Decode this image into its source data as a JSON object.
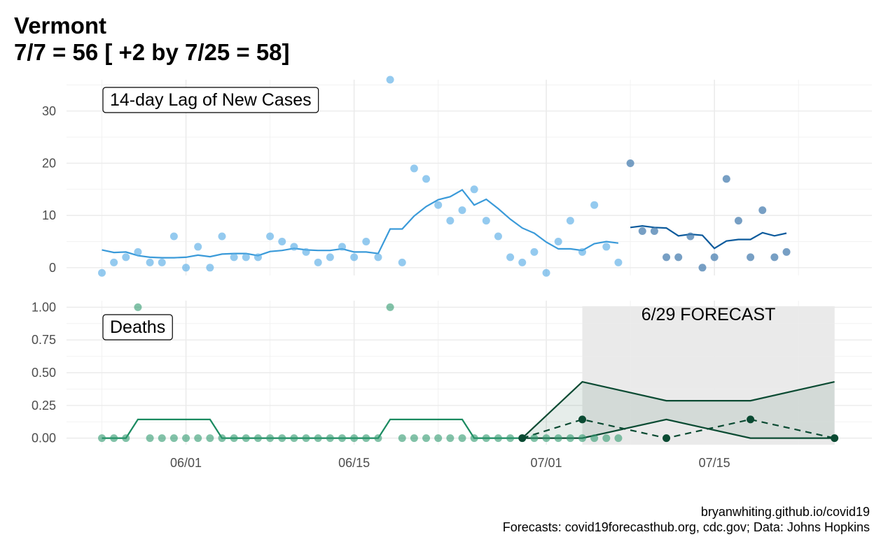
{
  "title": {
    "line1": "Vermont",
    "line2": "7/7 = 56 [ +2 by 7/25 = 58]"
  },
  "caption": {
    "line1": "bryanwhiting.github.io/covid19",
    "line2": "Forecasts: covid19forecasthub.org, cdc.gov; Data: Johns Hopkins"
  },
  "colors": {
    "cases_point": "#5aaee6",
    "cases_line": "#3a9ad9",
    "cases_forecast_point": "#4a7fb0",
    "cases_forecast_line": "#0b5a9c",
    "deaths_point": "#2e9a6e",
    "deaths_line": "#1a8a60",
    "forecast_line": "#0a4a32",
    "forecast_band": "#e9e9e9",
    "grid": "#ebebeb"
  },
  "chart_data": [
    {
      "type": "scatter",
      "label": "14-day Lag of New Cases",
      "x_axis": {
        "type": "date",
        "ticks": [
          "06/01",
          "06/15",
          "07/01",
          "07/15"
        ],
        "range": [
          "2020-05-25",
          "2020-07-28"
        ]
      },
      "ylim": [
        -1.5,
        36
      ],
      "y_ticks": [
        0,
        10,
        20,
        30
      ],
      "grid": true,
      "observed": {
        "points": [
          [
            "2020-05-25",
            -1
          ],
          [
            "2020-05-26",
            1
          ],
          [
            "2020-05-27",
            2
          ],
          [
            "2020-05-28",
            3
          ],
          [
            "2020-05-29",
            1
          ],
          [
            "2020-05-30",
            1
          ],
          [
            "2020-05-31",
            6
          ],
          [
            "2020-06-01",
            0
          ],
          [
            "2020-06-02",
            4
          ],
          [
            "2020-06-03",
            0
          ],
          [
            "2020-06-04",
            6
          ],
          [
            "2020-06-05",
            2
          ],
          [
            "2020-06-06",
            2
          ],
          [
            "2020-06-07",
            2
          ],
          [
            "2020-06-08",
            6
          ],
          [
            "2020-06-09",
            5
          ],
          [
            "2020-06-10",
            4
          ],
          [
            "2020-06-11",
            3
          ],
          [
            "2020-06-12",
            1
          ],
          [
            "2020-06-13",
            2
          ],
          [
            "2020-06-14",
            4
          ],
          [
            "2020-06-15",
            2
          ],
          [
            "2020-06-16",
            5
          ],
          [
            "2020-06-17",
            2
          ],
          [
            "2020-06-18",
            36
          ],
          [
            "2020-06-19",
            1
          ],
          [
            "2020-06-20",
            19
          ],
          [
            "2020-06-21",
            17
          ],
          [
            "2020-06-22",
            12
          ],
          [
            "2020-06-23",
            9
          ],
          [
            "2020-06-24",
            11
          ],
          [
            "2020-06-25",
            15
          ],
          [
            "2020-06-26",
            9
          ],
          [
            "2020-06-27",
            6
          ],
          [
            "2020-06-28",
            2
          ],
          [
            "2020-06-29",
            1
          ],
          [
            "2020-06-30",
            3
          ],
          [
            "2020-07-01",
            -1
          ],
          [
            "2020-07-02",
            5
          ],
          [
            "2020-07-03",
            9
          ],
          [
            "2020-07-04",
            3
          ],
          [
            "2020-07-05",
            12
          ],
          [
            "2020-07-06",
            4
          ],
          [
            "2020-07-07",
            1
          ]
        ],
        "rolling_mean": [
          [
            "2020-05-25",
            3.4
          ],
          [
            "2020-05-26",
            2.9
          ],
          [
            "2020-05-27",
            3.0
          ],
          [
            "2020-05-28",
            2.3
          ],
          [
            "2020-05-29",
            2.0
          ],
          [
            "2020-05-30",
            1.9
          ],
          [
            "2020-05-31",
            1.9
          ],
          [
            "2020-06-01",
            2.0
          ],
          [
            "2020-06-02",
            2.4
          ],
          [
            "2020-06-03",
            2.1
          ],
          [
            "2020-06-04",
            2.6
          ],
          [
            "2020-06-05",
            2.7
          ],
          [
            "2020-06-06",
            2.7
          ],
          [
            "2020-06-07",
            2.3
          ],
          [
            "2020-06-08",
            3.1
          ],
          [
            "2020-06-09",
            3.3
          ],
          [
            "2020-06-10",
            3.7
          ],
          [
            "2020-06-11",
            3.4
          ],
          [
            "2020-06-12",
            3.3
          ],
          [
            "2020-06-13",
            3.3
          ],
          [
            "2020-06-14",
            3.6
          ],
          [
            "2020-06-15",
            3.0
          ],
          [
            "2020-06-16",
            3.0
          ],
          [
            "2020-06-17",
            2.7
          ],
          [
            "2020-06-18",
            7.4
          ],
          [
            "2020-06-19",
            7.4
          ],
          [
            "2020-06-20",
            9.9
          ],
          [
            "2020-06-21",
            11.7
          ],
          [
            "2020-06-22",
            13.0
          ],
          [
            "2020-06-23",
            13.6
          ],
          [
            "2020-06-24",
            14.9
          ],
          [
            "2020-06-25",
            12.0
          ],
          [
            "2020-06-26",
            13.1
          ],
          [
            "2020-06-27",
            11.3
          ],
          [
            "2020-06-28",
            9.3
          ],
          [
            "2020-06-29",
            7.6
          ],
          [
            "2020-06-30",
            6.6
          ],
          [
            "2020-07-01",
            4.9
          ],
          [
            "2020-07-02",
            3.6
          ],
          [
            "2020-07-03",
            3.6
          ],
          [
            "2020-07-04",
            3.3
          ],
          [
            "2020-07-05",
            4.6
          ],
          [
            "2020-07-06",
            5.0
          ],
          [
            "2020-07-07",
            4.7
          ]
        ]
      },
      "recent": {
        "points": [
          [
            "2020-07-08",
            20
          ],
          [
            "2020-07-09",
            7
          ],
          [
            "2020-07-10",
            7
          ],
          [
            "2020-07-11",
            2
          ],
          [
            "2020-07-12",
            2
          ],
          [
            "2020-07-13",
            6
          ],
          [
            "2020-07-14",
            0
          ],
          [
            "2020-07-15",
            2
          ],
          [
            "2020-07-16",
            17
          ],
          [
            "2020-07-17",
            9
          ],
          [
            "2020-07-18",
            2
          ],
          [
            "2020-07-19",
            11
          ],
          [
            "2020-07-20",
            2
          ],
          [
            "2020-07-21",
            3
          ]
        ],
        "rolling_mean": [
          [
            "2020-07-08",
            7.7
          ],
          [
            "2020-07-09",
            8.0
          ],
          [
            "2020-07-10",
            7.7
          ],
          [
            "2020-07-11",
            7.6
          ],
          [
            "2020-07-12",
            6.1
          ],
          [
            "2020-07-13",
            6.4
          ],
          [
            "2020-07-14",
            6.2
          ],
          [
            "2020-07-15",
            3.7
          ],
          [
            "2020-07-16",
            5.1
          ],
          [
            "2020-07-17",
            5.4
          ],
          [
            "2020-07-18",
            5.4
          ],
          [
            "2020-07-19",
            6.7
          ],
          [
            "2020-07-20",
            6.1
          ],
          [
            "2020-07-21",
            6.6
          ]
        ]
      }
    },
    {
      "type": "scatter",
      "label": "Deaths",
      "x_axis": {
        "type": "date",
        "ticks": [
          "06/01",
          "06/15",
          "07/01",
          "07/15"
        ],
        "range": [
          "2020-05-25",
          "2020-07-28"
        ]
      },
      "ylim": [
        -0.05,
        1.05
      ],
      "y_ticks": [
        "0.00",
        "0.25",
        "0.50",
        "0.75",
        "1.00"
      ],
      "grid": true,
      "observed": {
        "points": [
          [
            "2020-05-25",
            0
          ],
          [
            "2020-05-26",
            0
          ],
          [
            "2020-05-27",
            0
          ],
          [
            "2020-05-28",
            1
          ],
          [
            "2020-05-29",
            0
          ],
          [
            "2020-05-30",
            0
          ],
          [
            "2020-05-31",
            0
          ],
          [
            "2020-06-01",
            0
          ],
          [
            "2020-06-02",
            0
          ],
          [
            "2020-06-03",
            0
          ],
          [
            "2020-06-04",
            0
          ],
          [
            "2020-06-05",
            0
          ],
          [
            "2020-06-06",
            0
          ],
          [
            "2020-06-07",
            0
          ],
          [
            "2020-06-08",
            0
          ],
          [
            "2020-06-09",
            0
          ],
          [
            "2020-06-10",
            0
          ],
          [
            "2020-06-11",
            0
          ],
          [
            "2020-06-12",
            0
          ],
          [
            "2020-06-13",
            0
          ],
          [
            "2020-06-14",
            0
          ],
          [
            "2020-06-15",
            0
          ],
          [
            "2020-06-16",
            0
          ],
          [
            "2020-06-17",
            0
          ],
          [
            "2020-06-18",
            1
          ],
          [
            "2020-06-19",
            0
          ],
          [
            "2020-06-20",
            0
          ],
          [
            "2020-06-21",
            0
          ],
          [
            "2020-06-22",
            0
          ],
          [
            "2020-06-23",
            0
          ],
          [
            "2020-06-24",
            0
          ],
          [
            "2020-06-25",
            0
          ],
          [
            "2020-06-26",
            0
          ],
          [
            "2020-06-27",
            0
          ],
          [
            "2020-06-28",
            0
          ],
          [
            "2020-06-29",
            0
          ],
          [
            "2020-06-30",
            0
          ],
          [
            "2020-07-01",
            0
          ],
          [
            "2020-07-02",
            0
          ],
          [
            "2020-07-03",
            0
          ],
          [
            "2020-07-04",
            0
          ],
          [
            "2020-07-05",
            0
          ],
          [
            "2020-07-06",
            0
          ],
          [
            "2020-07-07",
            0
          ]
        ],
        "rolling_mean": [
          [
            "2020-05-25",
            0
          ],
          [
            "2020-05-27",
            0
          ],
          [
            "2020-05-28",
            0.143
          ],
          [
            "2020-06-03",
            0.143
          ],
          [
            "2020-06-04",
            0
          ],
          [
            "2020-06-17",
            0
          ],
          [
            "2020-06-18",
            0.143
          ],
          [
            "2020-06-24",
            0.143
          ],
          [
            "2020-06-25",
            0
          ],
          [
            "2020-06-29",
            0
          ]
        ]
      },
      "forecast": {
        "label": "6/29 FORECAST",
        "shaded_range": [
          "2020-07-04",
          "2020-07-25"
        ],
        "points": [
          [
            "2020-06-29",
            0
          ],
          [
            "2020-07-04",
            0.143
          ],
          [
            "2020-07-11",
            0
          ],
          [
            "2020-07-18",
            0.143
          ],
          [
            "2020-07-25",
            0
          ]
        ],
        "upper": [
          [
            "2020-06-29",
            0
          ],
          [
            "2020-07-04",
            0.43
          ],
          [
            "2020-07-11",
            0.286
          ],
          [
            "2020-07-18",
            0.286
          ],
          [
            "2020-07-25",
            0.43
          ]
        ],
        "lower": [
          [
            "2020-06-29",
            0
          ],
          [
            "2020-07-04",
            0
          ],
          [
            "2020-07-11",
            0.143
          ],
          [
            "2020-07-18",
            0
          ],
          [
            "2020-07-25",
            0
          ]
        ]
      }
    }
  ]
}
